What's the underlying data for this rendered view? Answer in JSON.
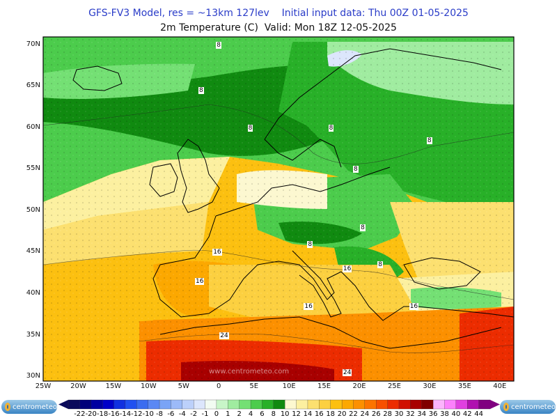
{
  "header": {
    "title_line1": "GFS-FV3 Model, res = ~13km 127lev    Initial input data: Thu 00Z 01-05-2025",
    "title_line2": "2m Temperature (C)  Valid: Mon 18Z 12-05-2025"
  },
  "map": {
    "lat_labels": [
      "70N",
      "65N",
      "60N",
      "55N",
      "50N",
      "45N",
      "40N",
      "35N",
      "30N"
    ],
    "lon_labels": [
      "25W",
      "20W",
      "15W",
      "10W",
      "5W",
      "0",
      "5E",
      "10E",
      "15E",
      "20E",
      "25E",
      "30E",
      "35E",
      "40E"
    ],
    "contour_labels": [
      {
        "text": "8",
        "lon": -2.5,
        "lat": 64.5
      },
      {
        "text": "8",
        "lon": 4.5,
        "lat": 60.0
      },
      {
        "text": "8",
        "lon": 16.0,
        "lat": 60.0
      },
      {
        "text": "8",
        "lon": 30.0,
        "lat": 58.5
      },
      {
        "text": "8",
        "lon": 19.5,
        "lat": 55.0
      },
      {
        "text": "8",
        "lon": 20.5,
        "lat": 48.0
      },
      {
        "text": "8",
        "lon": 13.0,
        "lat": 46.0
      },
      {
        "text": "8",
        "lon": 23.0,
        "lat": 43.5
      },
      {
        "text": "8",
        "lon": 0.0,
        "lat": 70.0
      },
      {
        "text": "16",
        "lon": -0.5,
        "lat": 45.0
      },
      {
        "text": "16",
        "lon": -3.0,
        "lat": 41.5
      },
      {
        "text": "16",
        "lon": 18.0,
        "lat": 43.0
      },
      {
        "text": "16",
        "lon": 12.5,
        "lat": 38.5
      },
      {
        "text": "16",
        "lon": 27.5,
        "lat": 38.5
      },
      {
        "text": "24",
        "lon": 0.5,
        "lat": 35.0
      },
      {
        "text": "24",
        "lon": 18.0,
        "lat": 29.5
      }
    ],
    "watermark": "www.centrometeo.com"
  },
  "colorbar": {
    "ticks": [
      "-22",
      "-20",
      "-18",
      "-16",
      "-14",
      "-12",
      "-10",
      "-8",
      "-6",
      "-4",
      "-2",
      "-1",
      "0",
      "1",
      "2",
      "4",
      "6",
      "8",
      "10",
      "12",
      "14",
      "16",
      "18",
      "20",
      "22",
      "24",
      "26",
      "28",
      "30",
      "32",
      "34",
      "36",
      "38",
      "40",
      "42",
      "44"
    ],
    "colors": [
      "#0a0a5a",
      "#00007a",
      "#0000a0",
      "#0000c8",
      "#1030e0",
      "#2050f0",
      "#3a6cf0",
      "#5a88f4",
      "#7aa4f6",
      "#9cbaf8",
      "#bcd0fa",
      "#dce6fc",
      "#f2fbf2",
      "#c8f5c8",
      "#a0eca0",
      "#74e074",
      "#4ccc4c",
      "#28b028",
      "#108a10",
      "#fcf8d0",
      "#fcf0a0",
      "#fce070",
      "#fcd040",
      "#fcc010",
      "#fca800",
      "#fc9000",
      "#fc7400",
      "#f85000",
      "#ec2c00",
      "#d01000",
      "#a80000",
      "#800000",
      "#fcb4fc",
      "#fc80fc",
      "#e040e0",
      "#b010b0",
      "#800080"
    ],
    "colors_note": ""
  },
  "branding": {
    "logo_text": "centrometeo"
  }
}
